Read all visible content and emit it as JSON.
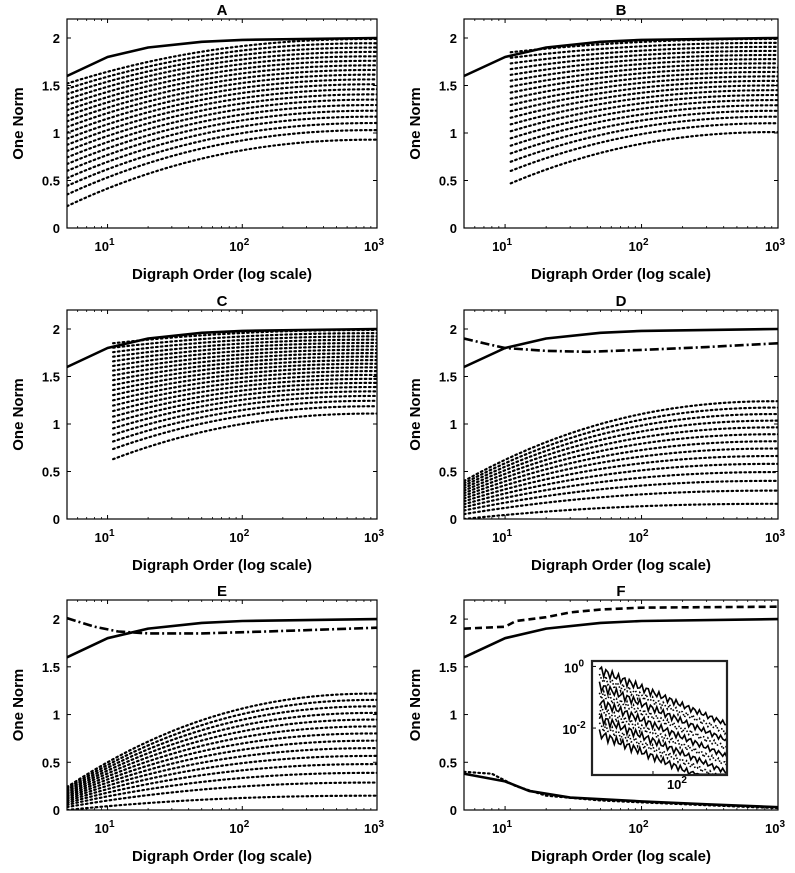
{
  "chart_data": [
    {
      "type": "line",
      "title": "A",
      "xlabel": "Digraph Order (log scale)",
      "ylabel": "One Norm",
      "x_scale": "log",
      "xlim": [
        5,
        1000
      ],
      "ylim": [
        0,
        2.2
      ],
      "xtick_labels": [
        "10",
        "10",
        "10"
      ],
      "xtick_exponents": [
        "1",
        "2",
        "3"
      ],
      "ytick_labels": [
        "0",
        "0.5",
        "1",
        "1.5",
        "2"
      ],
      "series": [
        {
          "style": "solid",
          "points": [
            [
              5,
              1.6
            ],
            [
              10,
              1.8
            ],
            [
              20,
              1.9
            ],
            [
              50,
              1.96
            ],
            [
              100,
              1.98
            ],
            [
              1000,
              2.0
            ]
          ]
        },
        {
          "style": "dotted",
          "family": {
            "count": 20,
            "x_start": 5,
            "first_start": 0.23,
            "last_start": 1.52,
            "first_end": 0.93,
            "last_end": 1.99
          }
        }
      ]
    },
    {
      "type": "line",
      "title": "B",
      "xlabel": "Digraph Order (log scale)",
      "ylabel": "One Norm",
      "x_scale": "log",
      "xlim": [
        5,
        1000
      ],
      "ylim": [
        0,
        2.2
      ],
      "xtick_labels": [
        "10",
        "10",
        "10"
      ],
      "xtick_exponents": [
        "1",
        "2",
        "3"
      ],
      "ytick_labels": [
        "0",
        "0.5",
        "1",
        "1.5",
        "2"
      ],
      "series": [
        {
          "style": "solid",
          "points": [
            [
              5,
              1.6
            ],
            [
              10,
              1.8
            ],
            [
              20,
              1.9
            ],
            [
              50,
              1.96
            ],
            [
              100,
              1.98
            ],
            [
              1000,
              2.0
            ]
          ]
        },
        {
          "style": "dotted",
          "family": {
            "count": 20,
            "x_start": 11,
            "first_start": 0.47,
            "last_start": 1.85,
            "first_end": 1.01,
            "last_end": 1.99
          }
        }
      ]
    },
    {
      "type": "line",
      "title": "C",
      "xlabel": "Digraph Order (log scale)",
      "ylabel": "One Norm",
      "x_scale": "log",
      "xlim": [
        5,
        1000
      ],
      "ylim": [
        0,
        2.2
      ],
      "xtick_labels": [
        "10",
        "10",
        "10"
      ],
      "xtick_exponents": [
        "1",
        "2",
        "3"
      ],
      "ytick_labels": [
        "0",
        "0.5",
        "1",
        "1.5",
        "2"
      ],
      "series": [
        {
          "style": "solid",
          "points": [
            [
              5,
              1.6
            ],
            [
              10,
              1.8
            ],
            [
              20,
              1.9
            ],
            [
              50,
              1.96
            ],
            [
              100,
              1.98
            ],
            [
              1000,
              2.0
            ]
          ]
        },
        {
          "style": "dotted",
          "family": {
            "count": 22,
            "x_start": 11,
            "first_start": 0.63,
            "last_start": 1.85,
            "first_end": 1.11,
            "last_end": 1.99
          }
        }
      ]
    },
    {
      "type": "line",
      "title": "D",
      "xlabel": "Digraph Order (log scale)",
      "ylabel": "One Norm",
      "x_scale": "log",
      "xlim": [
        5,
        1000
      ],
      "ylim": [
        0,
        2.2
      ],
      "xtick_labels": [
        "10",
        "10",
        "10"
      ],
      "xtick_exponents": [
        "1",
        "2",
        "3"
      ],
      "ytick_labels": [
        "0",
        "0.5",
        "1",
        "1.5",
        "2"
      ],
      "series": [
        {
          "style": "solid",
          "points": [
            [
              5,
              1.6
            ],
            [
              10,
              1.8
            ],
            [
              20,
              1.9
            ],
            [
              50,
              1.96
            ],
            [
              100,
              1.98
            ],
            [
              1000,
              2.0
            ]
          ]
        },
        {
          "style": "dashdot",
          "points": [
            [
              5,
              1.9
            ],
            [
              7,
              1.85
            ],
            [
              10,
              1.8
            ],
            [
              20,
              1.77
            ],
            [
              40,
              1.76
            ],
            [
              100,
              1.78
            ],
            [
              300,
              1.81
            ],
            [
              1000,
              1.85
            ]
          ]
        },
        {
          "style": "dotted",
          "family": {
            "count": 14,
            "x_start": 5,
            "first_start": 0.0,
            "last_start": 0.4,
            "first_end": 0.16,
            "last_end": 1.24
          }
        }
      ]
    },
    {
      "type": "line",
      "title": "E",
      "xlabel": "Digraph Order (log scale)",
      "ylabel": "One Norm",
      "x_scale": "log",
      "xlim": [
        5,
        1000
      ],
      "ylim": [
        0,
        2.2
      ],
      "xtick_labels": [
        "10",
        "10",
        "10"
      ],
      "xtick_exponents": [
        "1",
        "2",
        "3"
      ],
      "ytick_labels": [
        "0",
        "0.5",
        "1",
        "1.5",
        "2"
      ],
      "series": [
        {
          "style": "solid",
          "points": [
            [
              5,
              1.6
            ],
            [
              10,
              1.8
            ],
            [
              20,
              1.9
            ],
            [
              50,
              1.96
            ],
            [
              100,
              1.98
            ],
            [
              1000,
              2.0
            ]
          ]
        },
        {
          "style": "dashdot",
          "points": [
            [
              5,
              2.01
            ],
            [
              8,
              1.92
            ],
            [
              12,
              1.87
            ],
            [
              20,
              1.85
            ],
            [
              50,
              1.85
            ],
            [
              150,
              1.87
            ],
            [
              400,
              1.89
            ],
            [
              1000,
              1.91
            ]
          ]
        },
        {
          "style": "dotted",
          "family": {
            "count": 14,
            "x_start": 5,
            "first_start": 0.0,
            "last_start": 0.24,
            "first_end": 0.15,
            "last_end": 1.22
          }
        }
      ]
    },
    {
      "type": "line",
      "title": "F",
      "xlabel": "Digraph Order (log scale)",
      "ylabel": "One Norm",
      "x_scale": "log",
      "xlim": [
        5,
        1000
      ],
      "ylim": [
        0,
        2.2
      ],
      "xtick_labels": [
        "10",
        "10",
        "10"
      ],
      "xtick_exponents": [
        "1",
        "2",
        "3"
      ],
      "ytick_labels": [
        "0",
        "0.5",
        "1",
        "1.5",
        "2"
      ],
      "series": [
        {
          "style": "solid",
          "points": [
            [
              5,
              1.6
            ],
            [
              10,
              1.8
            ],
            [
              20,
              1.9
            ],
            [
              50,
              1.96
            ],
            [
              100,
              1.98
            ],
            [
              1000,
              2.0
            ]
          ]
        },
        {
          "style": "dashed",
          "points": [
            [
              5,
              1.9
            ],
            [
              10,
              1.92
            ],
            [
              12,
              1.98
            ],
            [
              20,
              2.02
            ],
            [
              30,
              2.07
            ],
            [
              50,
              2.1
            ],
            [
              100,
              2.12
            ],
            [
              1000,
              2.13
            ]
          ]
        },
        {
          "style": "dotted",
          "points": [
            [
              5,
              0.4
            ],
            [
              8,
              0.38
            ],
            [
              12,
              0.25
            ],
            [
              20,
              0.15
            ],
            [
              50,
              0.1
            ],
            [
              100,
              0.08
            ],
            [
              300,
              0.05
            ],
            [
              1000,
              0.02
            ]
          ]
        },
        {
          "style": "solid",
          "points": [
            [
              5,
              0.38
            ],
            [
              10,
              0.3
            ],
            [
              15,
              0.2
            ],
            [
              30,
              0.13
            ],
            [
              100,
              0.09
            ],
            [
              300,
              0.06
            ],
            [
              1000,
              0.03
            ]
          ]
        }
      ],
      "inset": {
        "x_scale": "log",
        "y_scale": "log",
        "xtick_labels": [
          "10"
        ],
        "xtick_exponents": [
          "2"
        ],
        "ytick_labels": [
          "10",
          "10"
        ],
        "ytick_exponents": [
          "0",
          "-2"
        ],
        "xlim": [
          15,
          1000
        ],
        "ylim": [
          0.0003,
          1.5
        ]
      }
    }
  ]
}
